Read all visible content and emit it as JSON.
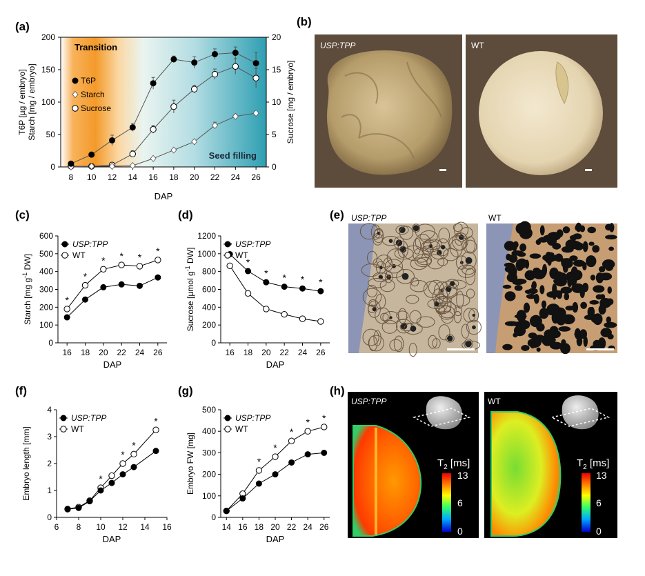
{
  "colors": {
    "transition_orange": "#f5a623",
    "seed_filling_teal": "#3aa8b8",
    "sample_black": "#000000",
    "sample_white": "#ffffff",
    "micro_background": "#8c95b5",
    "seed_background": "#5b4a3c",
    "mri_background": "#000000"
  },
  "chart_data": [
    {
      "panel": "(a)",
      "type": "line",
      "xlabel": "DAP",
      "ylabel_left": [
        "T6P [µg / embryo]",
        "Starch [mg / embryo]"
      ],
      "ylabel_right": "Sucrose [mg / embryo]",
      "xticks": [
        "8",
        "10",
        "12",
        "14",
        "16",
        "18",
        "20",
        "22",
        "24",
        "26"
      ],
      "yticks_left": [
        "0",
        "50",
        "100",
        "150",
        "200"
      ],
      "yticks_right": [
        "0",
        "5",
        "10",
        "15",
        "20"
      ],
      "xlim": [
        7,
        27
      ],
      "ylim_left": [
        0,
        200
      ],
      "ylim_right": [
        0,
        20
      ],
      "region_labels": {
        "transition": "Transition",
        "seed_filling": "Seed filling"
      },
      "series": [
        {
          "name": "T6P",
          "marker": "filled-circle",
          "axis": "left",
          "x": [
            8,
            10,
            12,
            14,
            16,
            18,
            20,
            22,
            24,
            26
          ],
          "values": [
            5,
            19,
            41,
            61,
            129,
            166,
            161,
            174,
            176,
            160
          ],
          "errors": [
            2,
            3,
            8,
            6,
            9,
            5,
            9,
            8,
            9,
            17
          ]
        },
        {
          "name": "Starch",
          "marker": "open-diamond",
          "axis": "left",
          "x": [
            8,
            10,
            12,
            14,
            16,
            18,
            20,
            22,
            24,
            26
          ],
          "values": [
            0,
            1,
            1,
            2,
            13,
            26,
            39,
            64,
            78,
            83
          ],
          "errors": [
            0,
            0,
            0,
            0,
            1,
            2,
            2,
            5,
            3,
            2
          ]
        },
        {
          "name": "Sucrose",
          "marker": "open-circle",
          "axis": "right",
          "x": [
            8,
            10,
            12,
            14,
            16,
            18,
            20,
            22,
            24,
            26
          ],
          "values": [
            0.1,
            0.1,
            0.3,
            2,
            5.8,
            9.3,
            12,
            14.3,
            15.5,
            13.7
          ],
          "errors": [
            0,
            0,
            0.1,
            0.5,
            0.6,
            1,
            0.6,
            0.8,
            1.2,
            1.5
          ]
        }
      ]
    },
    {
      "panel": "(c)",
      "type": "line",
      "xlabel": "DAP",
      "ylabel": "Starch [mg g-1 DW]",
      "ylabel_parts": [
        "Starch [mg g",
        "-1",
        " DW]"
      ],
      "xticks": [
        "16",
        "18",
        "20",
        "22",
        "24",
        "26"
      ],
      "yticks": [
        "0",
        "100",
        "200",
        "300",
        "400",
        "500",
        "600"
      ],
      "xlim": [
        15,
        27
      ],
      "ylim": [
        0,
        600
      ],
      "series": [
        {
          "name": "USP:TPP",
          "marker": "filled-circle",
          "x": [
            16,
            18,
            20,
            22,
            24,
            26
          ],
          "values": [
            143,
            243,
            312,
            328,
            320,
            367
          ]
        },
        {
          "name": "WT",
          "marker": "open-circle",
          "x": [
            16,
            18,
            20,
            22,
            24,
            26
          ],
          "values": [
            190,
            323,
            413,
            437,
            430,
            465
          ]
        }
      ],
      "significance": "*",
      "significant_x": [
        16,
        18,
        20,
        22,
        24,
        26
      ]
    },
    {
      "panel": "(d)",
      "type": "line",
      "xlabel": "DAP",
      "ylabel": "Sucrose [µmol g-1 DW]",
      "ylabel_parts": [
        "Sucrose [µmol g",
        "-1",
        " DW]"
      ],
      "xticks": [
        "16",
        "18",
        "20",
        "22",
        "24",
        "26"
      ],
      "yticks": [
        "0",
        "200",
        "400",
        "600",
        "800",
        "1000",
        "1200"
      ],
      "xlim": [
        15,
        27
      ],
      "ylim": [
        0,
        1200
      ],
      "series": [
        {
          "name": "USP:TPP",
          "marker": "filled-circle",
          "x": [
            16,
            18,
            20,
            22,
            24,
            26
          ],
          "values": [
            995,
            805,
            680,
            630,
            610,
            580
          ]
        },
        {
          "name": "WT",
          "marker": "open-circle",
          "x": [
            16,
            18,
            20,
            22,
            24,
            26
          ],
          "values": [
            865,
            555,
            380,
            320,
            270,
            240
          ]
        }
      ],
      "significance": "*",
      "significant_x": [
        16,
        18,
        20,
        22,
        24,
        26
      ]
    },
    {
      "panel": "(f)",
      "type": "line",
      "xlabel": "DAP",
      "ylabel": "Embryo length [mm]",
      "xticks": [
        "6",
        "8",
        "10",
        "12",
        "14",
        "16"
      ],
      "yticks": [
        "0",
        "1",
        "2",
        "3",
        "4"
      ],
      "xlim": [
        6,
        16
      ],
      "ylim": [
        0,
        4
      ],
      "series": [
        {
          "name": "USP:TPP",
          "marker": "filled-circle",
          "x": [
            7,
            8,
            9,
            10,
            11,
            12,
            13,
            15
          ],
          "values": [
            0.3,
            0.35,
            0.6,
            1.0,
            1.28,
            1.6,
            1.87,
            2.47
          ]
        },
        {
          "name": "WT",
          "marker": "open-circle",
          "x": [
            7,
            8,
            9,
            10,
            11,
            12,
            13,
            15
          ],
          "values": [
            0.31,
            0.38,
            0.62,
            1.1,
            1.55,
            2.0,
            2.35,
            3.25
          ]
        }
      ],
      "significance": "*",
      "significant_x": [
        10,
        12,
        13,
        15
      ]
    },
    {
      "panel": "(g)",
      "type": "line",
      "xlabel": "DAP",
      "ylabel": "Embryo FW [mg]",
      "xticks": [
        "14",
        "16",
        "18",
        "20",
        "22",
        "24",
        "26"
      ],
      "yticks": [
        "0",
        "100",
        "200",
        "300",
        "400",
        "500"
      ],
      "xlim": [
        13.3,
        26.7
      ],
      "ylim": [
        0,
        500
      ],
      "series": [
        {
          "name": "USP:TPP",
          "marker": "filled-circle",
          "x": [
            14,
            16,
            18,
            20,
            22,
            24,
            26
          ],
          "values": [
            30,
            88,
            157,
            200,
            255,
            293,
            300
          ]
        },
        {
          "name": "WT",
          "marker": "open-circle",
          "x": [
            14,
            16,
            18,
            20,
            22,
            24,
            26
          ],
          "values": [
            30,
            110,
            218,
            282,
            355,
            400,
            420
          ]
        }
      ],
      "significance": "*",
      "significant_x": [
        18,
        20,
        22,
        24,
        26
      ]
    }
  ],
  "panels": {
    "a": {
      "label": "(a)"
    },
    "b": {
      "label": "(b)",
      "left_title": "USP:TPP",
      "right_title": "WT"
    },
    "c": {
      "label": "(c)"
    },
    "d": {
      "label": "(d)"
    },
    "e": {
      "label": "(e)",
      "left_title": "USP:TPP",
      "right_title": "WT"
    },
    "f": {
      "label": "(f)"
    },
    "g": {
      "label": "(g)"
    },
    "h": {
      "label": "(h)",
      "left_title": "USP:TPP",
      "right_title": "WT",
      "colorbar_title": "T2 [ms]",
      "colorbar_title_main": "T",
      "colorbar_title_sub": "2",
      "colorbar_title_unit": " [ms]",
      "colorbar_ticks": [
        "13",
        "6",
        "0"
      ]
    }
  }
}
